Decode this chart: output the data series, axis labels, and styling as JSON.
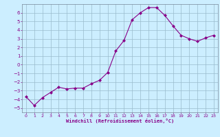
{
  "x": [
    0,
    1,
    2,
    3,
    4,
    5,
    6,
    7,
    8,
    9,
    10,
    11,
    12,
    13,
    14,
    15,
    16,
    17,
    18,
    19,
    20,
    21,
    22,
    23
  ],
  "y": [
    -3.7,
    -4.7,
    -3.8,
    -3.2,
    -2.6,
    -2.8,
    -2.7,
    -2.7,
    -2.2,
    -1.8,
    -0.9,
    1.6,
    2.8,
    5.2,
    6.0,
    6.6,
    6.6,
    5.7,
    4.5,
    3.4,
    3.0,
    2.7,
    3.1,
    3.4
  ],
  "line_color": "#880088",
  "marker": "D",
  "marker_size": 2,
  "bg_color": "#cceeff",
  "grid_color": "#99bbcc",
  "xlabel": "Windchill (Refroidissement éolien,°C)",
  "xlabel_color": "#880088",
  "tick_color": "#880088",
  "xlim": [
    -0.5,
    23.5
  ],
  "ylim": [
    -5.5,
    7.0
  ],
  "yticks": [
    -5,
    -4,
    -3,
    -2,
    -1,
    0,
    1,
    2,
    3,
    4,
    5,
    6
  ],
  "xticks": [
    0,
    1,
    2,
    3,
    4,
    5,
    6,
    7,
    8,
    9,
    10,
    11,
    12,
    13,
    14,
    15,
    16,
    17,
    18,
    19,
    20,
    21,
    22,
    23
  ]
}
